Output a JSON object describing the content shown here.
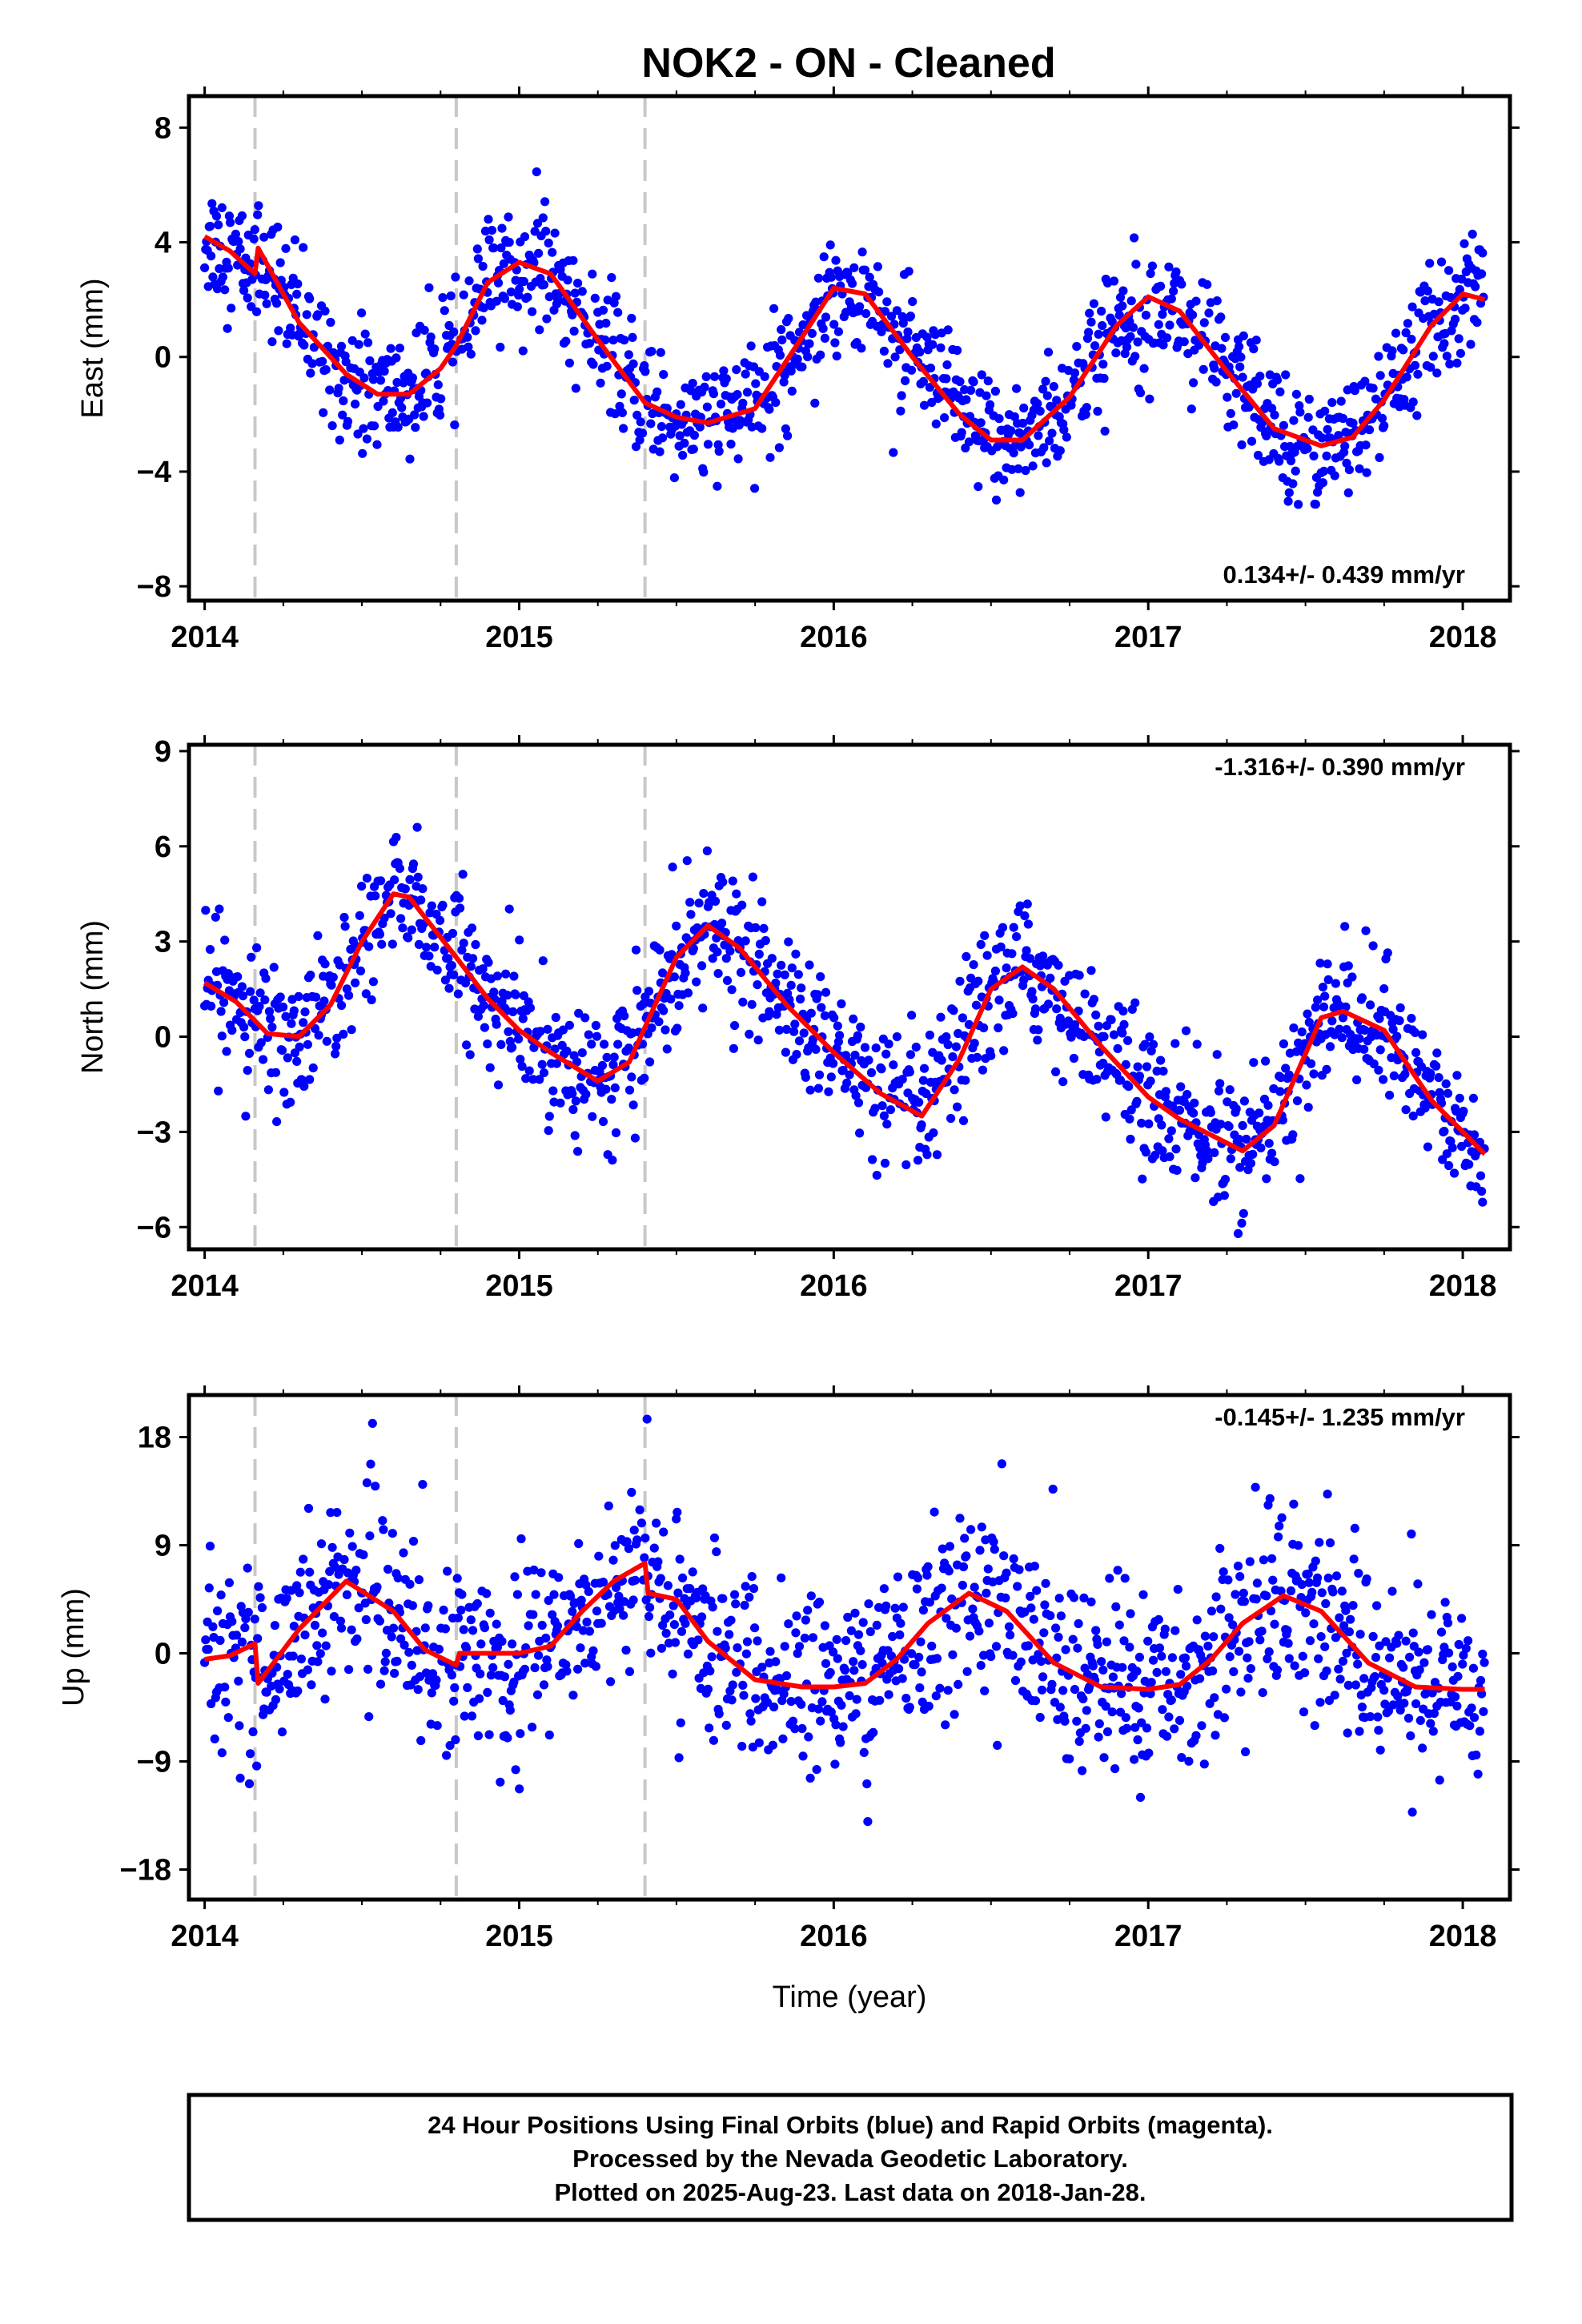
{
  "title": "NOK2  - ON - Cleaned",
  "colors": {
    "final_orbits": "#0000ff",
    "model_fit": "#ff0000",
    "breaks": "#c8c8c8",
    "frame": "#000000"
  },
  "chart_data": [
    {
      "type": "scatter",
      "component": "east",
      "ylabel": "East (mm)",
      "xlabel": "",
      "xlim": [
        2013.95,
        2018.15
      ],
      "ylim": [
        -8.5,
        9.1
      ],
      "xticks": [
        "2014",
        "2015",
        "2016",
        "2017",
        "2018"
      ],
      "yticks": [
        "8",
        "4",
        "0",
        "−4",
        "−8"
      ],
      "rate_label": "0.134+/- 0.439 mm/yr",
      "rate_position": "bottom-right",
      "breaks": [
        2014.16,
        2014.8,
        2015.4
      ],
      "fit": {
        "x": [
          2014.0,
          2014.08,
          2014.16,
          2014.17,
          2014.3,
          2014.45,
          2014.55,
          2014.65,
          2014.75,
          2014.8,
          2014.9,
          2015.0,
          2015.1,
          2015.25,
          2015.4,
          2015.5,
          2015.6,
          2015.75,
          2015.9,
          2016.0,
          2016.1,
          2016.25,
          2016.4,
          2016.5,
          2016.6,
          2016.75,
          2016.9,
          2017.0,
          2017.1,
          2017.25,
          2017.4,
          2017.55,
          2017.65,
          2017.75,
          2017.9,
          2018.0,
          2018.07
        ],
        "y": [
          4.2,
          3.7,
          2.9,
          3.8,
          1.2,
          -0.6,
          -1.3,
          -1.3,
          -0.4,
          0.4,
          2.6,
          3.3,
          2.9,
          0.6,
          -1.6,
          -2.1,
          -2.3,
          -1.8,
          0.7,
          2.4,
          2.2,
          0.0,
          -2.0,
          -2.9,
          -2.9,
          -1.4,
          1.1,
          2.1,
          1.6,
          -0.5,
          -2.5,
          -3.1,
          -2.8,
          -1.5,
          1.1,
          2.2,
          2.0
        ]
      }
    },
    {
      "type": "scatter",
      "component": "north",
      "ylabel": "North (mm)",
      "xlabel": "",
      "xlim": [
        2013.95,
        2018.15
      ],
      "ylim": [
        -6.7,
        9.2
      ],
      "xticks": [
        "2014",
        "2015",
        "2016",
        "2017",
        "2018"
      ],
      "yticks": [
        "9",
        "6",
        "3",
        "0",
        "−3",
        "−6"
      ],
      "rate_label": "-1.316+/- 0.390 mm/yr",
      "rate_position": "top-right",
      "breaks": [
        2014.16,
        2014.8,
        2015.4
      ],
      "fit": {
        "x": [
          2014.0,
          2014.1,
          2014.2,
          2014.3,
          2014.4,
          2014.5,
          2014.6,
          2014.65,
          2014.8,
          2014.9,
          2015.0,
          2015.1,
          2015.25,
          2015.35,
          2015.5,
          2015.6,
          2015.7,
          2015.85,
          2016.0,
          2016.15,
          2016.28,
          2016.4,
          2016.5,
          2016.6,
          2016.7,
          2016.85,
          2017.0,
          2017.1,
          2017.3,
          2017.4,
          2017.55,
          2017.62,
          2017.75,
          2017.9,
          2018.0,
          2018.07
        ],
        "y": [
          1.7,
          1.1,
          0.1,
          0.0,
          1.0,
          3.0,
          4.5,
          4.4,
          2.5,
          1.2,
          0.2,
          -0.5,
          -1.4,
          -0.8,
          2.5,
          3.5,
          2.8,
          1.0,
          -0.5,
          -1.8,
          -2.5,
          -0.7,
          1.5,
          2.2,
          1.5,
          -0.3,
          -1.9,
          -2.6,
          -3.6,
          -2.8,
          0.6,
          0.8,
          0.2,
          -2.0,
          -3.0,
          -3.7
        ]
      }
    },
    {
      "type": "scatter",
      "component": "up",
      "ylabel": "Up (mm)",
      "xlabel": "Time (year)",
      "xlim": [
        2013.95,
        2018.15
      ],
      "ylim": [
        -20.5,
        21.5
      ],
      "xticks": [
        "2014",
        "2015",
        "2016",
        "2017",
        "2018"
      ],
      "yticks": [
        "18",
        "9",
        "0",
        "−9",
        "−18"
      ],
      "rate_label": "-0.145+/- 1.235 mm/yr",
      "rate_position": "top-right",
      "breaks": [
        2014.16,
        2014.8,
        2015.4
      ],
      "fit": {
        "x": [
          2014.0,
          2014.08,
          2014.16,
          2014.17,
          2014.3,
          2014.45,
          2014.6,
          2014.7,
          2014.8,
          2014.81,
          2014.9,
          2015.0,
          2015.1,
          2015.2,
          2015.3,
          2015.4,
          2015.41,
          2015.5,
          2015.6,
          2015.75,
          2015.9,
          2016.0,
          2016.1,
          2016.2,
          2016.3,
          2016.43,
          2016.55,
          2016.7,
          2016.85,
          2017.0,
          2017.1,
          2017.2,
          2017.3,
          2017.43,
          2017.55,
          2017.7,
          2017.85,
          2018.0,
          2018.07
        ],
        "y": [
          -0.5,
          -0.2,
          0.8,
          -2.5,
          2.0,
          6.0,
          3.5,
          0.3,
          -1.0,
          0.0,
          0.0,
          0.0,
          0.6,
          3.5,
          6.0,
          7.5,
          5.0,
          4.5,
          1.0,
          -2.2,
          -2.8,
          -2.8,
          -2.5,
          -0.5,
          2.5,
          5.0,
          3.5,
          -0.8,
          -2.8,
          -3.0,
          -2.6,
          -0.5,
          2.5,
          4.8,
          3.5,
          -0.8,
          -2.8,
          -3.0,
          -3.0
        ]
      }
    }
  ],
  "footer": {
    "line1": "24 Hour Positions Using Final Orbits (blue) and Rapid Orbits (magenta).",
    "line2": "Processed by the Nevada Geodetic Laboratory.",
    "line3": "Plotted on 2025-Aug-23. Last data on 2018-Jan-28."
  }
}
